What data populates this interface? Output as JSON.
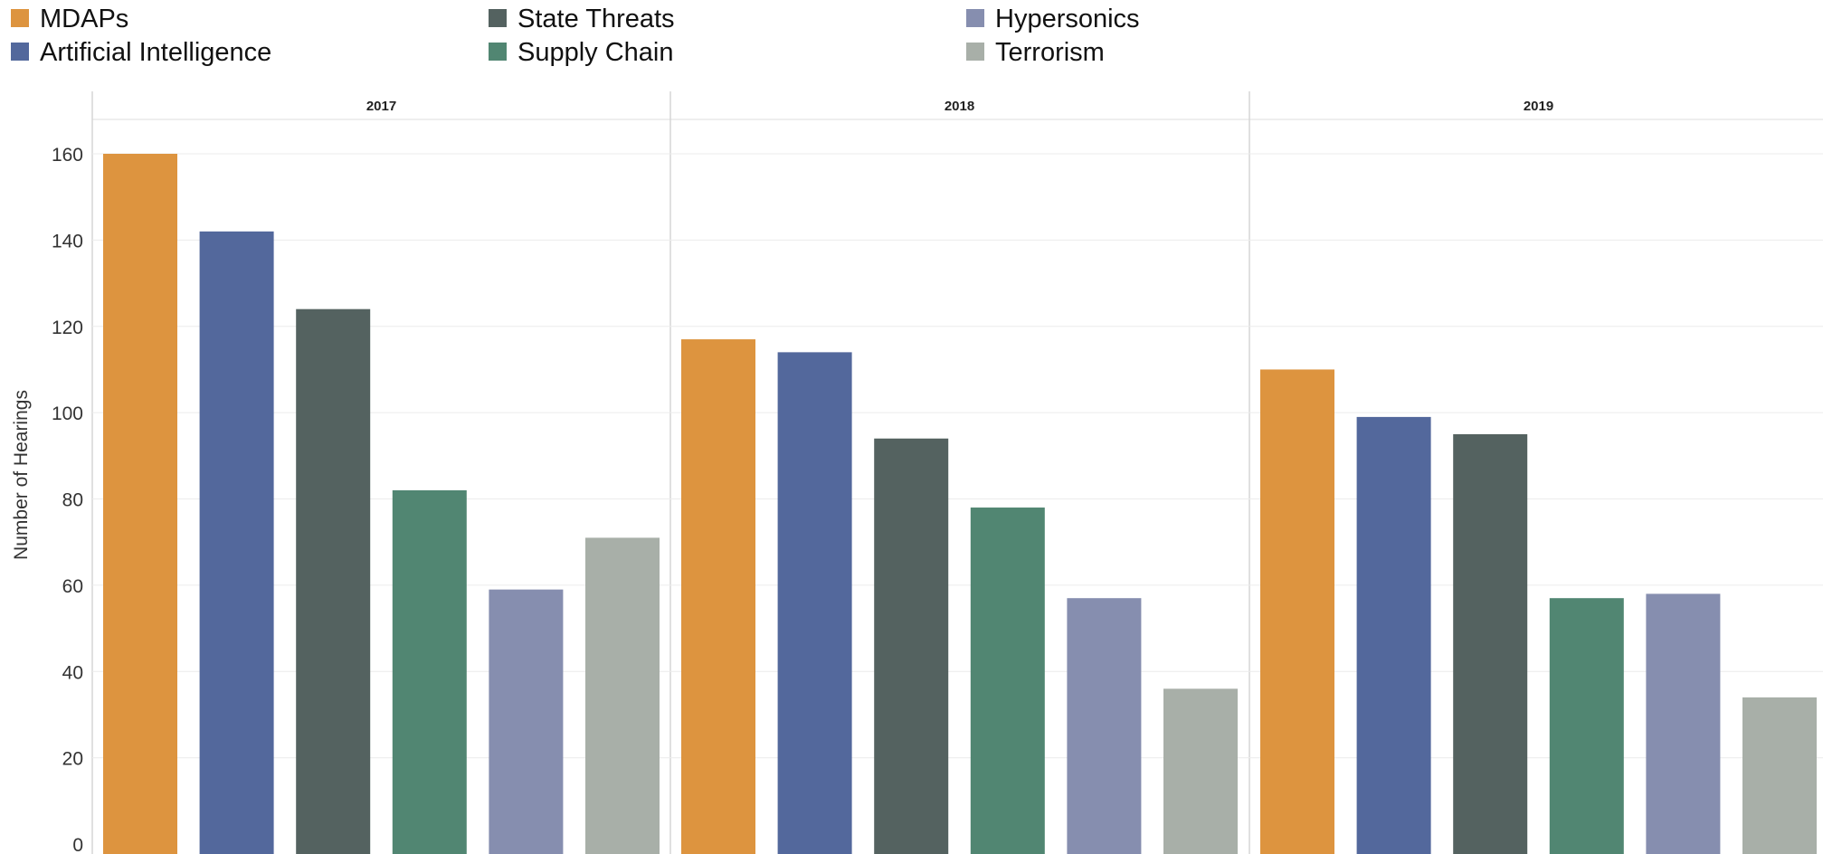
{
  "chart_data": {
    "type": "bar",
    "title": "",
    "xlabel": "",
    "ylabel": "Number of Hearings",
    "ylim": [
      0,
      165
    ],
    "yticks": [
      0,
      20,
      40,
      60,
      80,
      100,
      120,
      140,
      160
    ],
    "grid": true,
    "legend_position": "top-left",
    "facets": [
      "2017",
      "2018",
      "2019"
    ],
    "series": [
      {
        "name": "MDAPs",
        "color": "#dd943f",
        "values": [
          160,
          117,
          110
        ]
      },
      {
        "name": "Artificial Intelligence",
        "color": "#53689c",
        "values": [
          142,
          114,
          99
        ]
      },
      {
        "name": "State Threats",
        "color": "#546260",
        "values": [
          124,
          94,
          95
        ]
      },
      {
        "name": "Supply Chain",
        "color": "#518672",
        "values": [
          82,
          78,
          57
        ]
      },
      {
        "name": "Hypersonics",
        "color": "#868eaf",
        "values": [
          59,
          57,
          58
        ]
      },
      {
        "name": "Terrorism",
        "color": "#a8afa8",
        "values": [
          71,
          36,
          34
        ]
      }
    ]
  }
}
